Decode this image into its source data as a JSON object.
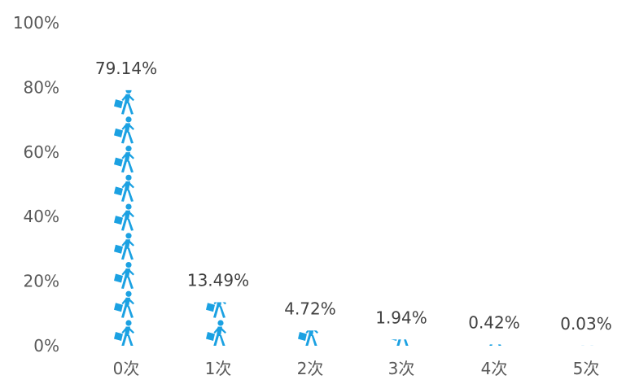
{
  "chart_data": {
    "type": "bar",
    "categories": [
      "0次",
      "1次",
      "2次",
      "3次",
      "4次",
      "5次"
    ],
    "values": [
      79.14,
      13.49,
      4.72,
      1.94,
      0.42,
      0.03
    ],
    "data_labels": [
      "79.14%",
      "13.49%",
      "4.72%",
      "1.94%",
      "0.42%",
      "0.03%"
    ],
    "y_ticks": [
      "0%",
      "20%",
      "40%",
      "60%",
      "80%",
      "100%"
    ],
    "ylim": [
      0,
      100
    ],
    "y_unit": "%",
    "grid": false,
    "legend": "none",
    "mark_style": "stacked-pictogram",
    "pictogram_icon": "walking-person-with-briefcase-icon",
    "colors": {
      "bar": "#1ba1e2",
      "tick_text": "#595959",
      "label_text": "#404040"
    }
  }
}
